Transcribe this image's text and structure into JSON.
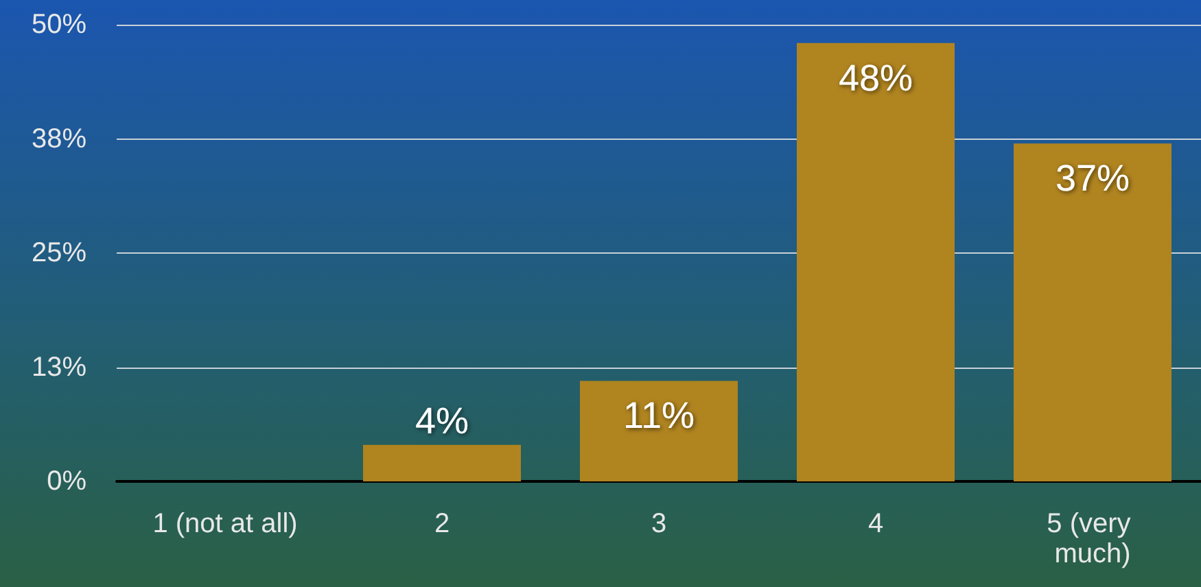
{
  "chart_data": {
    "type": "bar",
    "categories": [
      "1 (not at all)",
      "2",
      "3",
      "4",
      "5 (very much)"
    ],
    "values": [
      0,
      4,
      11,
      48,
      37
    ],
    "color": "#b0841f",
    "value_labels": [
      null,
      "4%",
      "11%",
      "48%",
      "37%"
    ],
    "ylim": [
      0,
      50
    ],
    "yticks": [
      {
        "value": 0,
        "label": "0%"
      },
      {
        "value": 12.5,
        "label": "13%"
      },
      {
        "value": 25,
        "label": "25%"
      },
      {
        "value": 37.5,
        "label": "38%"
      },
      {
        "value": 50,
        "label": "50%"
      }
    ],
    "grid": "y"
  }
}
